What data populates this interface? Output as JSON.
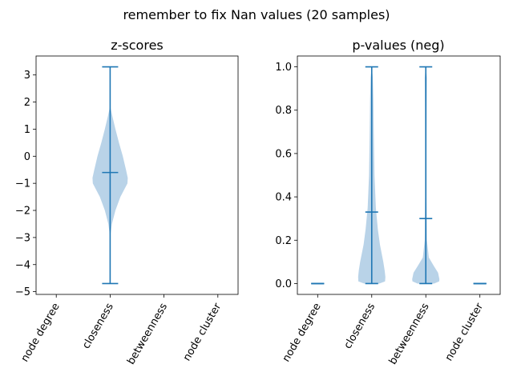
{
  "suptitle": "remember to fix Nan values (20 samples)",
  "chart_data": [
    {
      "type": "violin",
      "title": "z-scores",
      "categories": [
        "node degree",
        "closeness",
        "betweenness",
        "node cluster"
      ],
      "ylim": [
        -5.1,
        3.7
      ],
      "yticks": [
        -5,
        -4,
        -3,
        -2,
        -1,
        0,
        1,
        2,
        3
      ],
      "accent": "#1f77b4",
      "body_color": "#b9d3e8",
      "violins": [
        {
          "category": "closeness",
          "min": -4.7,
          "max": 3.3,
          "mean": -0.6,
          "profile": [
            [
              -2.9,
              0.02
            ],
            [
              -2.5,
              0.1
            ],
            [
              -2.0,
              0.3
            ],
            [
              -1.5,
              0.58
            ],
            [
              -1.0,
              0.98
            ],
            [
              -0.8,
              1.0
            ],
            [
              -0.5,
              0.9
            ],
            [
              0.0,
              0.72
            ],
            [
              0.5,
              0.5
            ],
            [
              1.0,
              0.3
            ],
            [
              1.5,
              0.12
            ],
            [
              1.8,
              0.02
            ]
          ]
        }
      ]
    },
    {
      "type": "violin",
      "title": "p-values (neg)",
      "categories": [
        "node degree",
        "closeness",
        "betweenness",
        "node cluster"
      ],
      "ylim": [
        -0.05,
        1.05
      ],
      "yticks": [
        0.0,
        0.2,
        0.4,
        0.6,
        0.8,
        1.0
      ],
      "accent": "#1f77b4",
      "body_color": "#b9d3e8",
      "violins": [
        {
          "category": "node degree",
          "min": 0.0,
          "max": 0.0,
          "mean": 0.0,
          "profile": []
        },
        {
          "category": "closeness",
          "min": 0.0,
          "max": 1.0,
          "mean": 0.33,
          "profile": [
            [
              0.0,
              0.55
            ],
            [
              0.01,
              0.98
            ],
            [
              0.03,
              1.0
            ],
            [
              0.06,
              0.95
            ],
            [
              0.1,
              0.85
            ],
            [
              0.18,
              0.6
            ],
            [
              0.25,
              0.45
            ],
            [
              0.35,
              0.3
            ],
            [
              0.5,
              0.2
            ],
            [
              0.7,
              0.15
            ],
            [
              0.85,
              0.12
            ],
            [
              0.95,
              0.08
            ],
            [
              1.0,
              0.0
            ]
          ]
        },
        {
          "category": "betweenness",
          "min": 0.0,
          "max": 1.0,
          "mean": 0.3,
          "profile": [
            [
              0.0,
              0.6
            ],
            [
              0.01,
              0.98
            ],
            [
              0.02,
              1.0
            ],
            [
              0.05,
              0.9
            ],
            [
              0.08,
              0.6
            ],
            [
              0.12,
              0.22
            ],
            [
              0.2,
              0.08
            ],
            [
              0.4,
              0.05
            ],
            [
              0.6,
              0.05
            ],
            [
              0.8,
              0.06
            ],
            [
              0.95,
              0.08
            ],
            [
              1.0,
              0.0
            ]
          ]
        },
        {
          "category": "node cluster",
          "min": 0.0,
          "max": 0.0,
          "mean": 0.0,
          "profile": []
        }
      ]
    }
  ]
}
